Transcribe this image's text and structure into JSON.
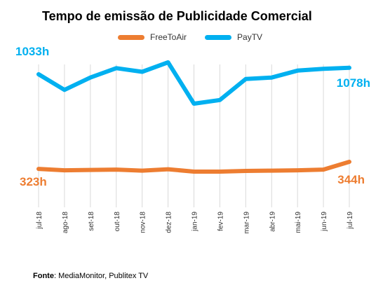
{
  "chart_data": {
    "type": "line",
    "title": "Tempo de emissão de Publicidade Comercial",
    "categories": [
      "jul-18",
      "ago-18",
      "set-18",
      "out-18",
      "nov-18",
      "dez-18",
      "jan-19",
      "fev-19",
      "mar-19",
      "abr-19",
      "mai-19",
      "jun-19",
      "jul-19"
    ],
    "series": [
      {
        "name": "FreeToAir",
        "color": "#ED7D31",
        "values": [
          323,
          319,
          320,
          321,
          318,
          322,
          315,
          315,
          317,
          318,
          319,
          321,
          344
        ]
      },
      {
        "name": "PayTV",
        "color": "#00B0F0",
        "values": [
          1033,
          925,
          1010,
          1075,
          1050,
          1115,
          830,
          855,
          1000,
          1010,
          1058,
          1070,
          1078
        ]
      }
    ],
    "annotations": [
      {
        "text": "1033h",
        "series": "PayTV",
        "index": 0
      },
      {
        "text": "1078h",
        "series": "PayTV",
        "index": 12
      },
      {
        "text": "323h",
        "series": "FreeToAir",
        "index": 0
      },
      {
        "text": "344h",
        "series": "FreeToAir",
        "index": 12
      }
    ],
    "grid": "vertical",
    "legend_position": "top"
  },
  "source": {
    "label": "Fonte",
    "text": ": MediaMonitor, Publitex TV"
  }
}
